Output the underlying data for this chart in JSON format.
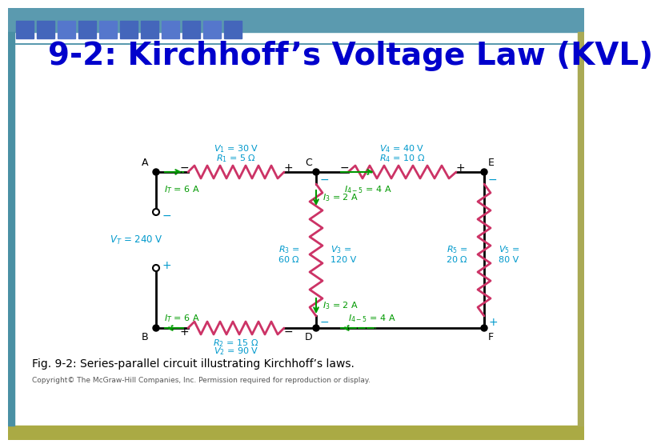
{
  "title": "9-2: Kirchhoff’s Voltage Law (KVL)",
  "title_color": "#0000CC",
  "title_fontsize": 28,
  "fig_caption": "Fig. 9-2: Series-parallel circuit illustrating Kirchhoff’s laws.",
  "copyright": "Copyright© The McGraw-Hill Companies, Inc. Permission required for reproduction or display.",
  "bg_color": "#FFFFFF",
  "border_color_top": "#5B8FA8",
  "border_color_bottom": "#9B9B00",
  "border_left_color": "#4A7FA0",
  "header_tile_color": "#4A6FAF",
  "circuit_line_color": "#000000",
  "resistor_color_horiz": "#CC3366",
  "resistor_color_vert": "#CC3366",
  "current_arrow_color": "#009900",
  "label_color": "#0099CC",
  "node_color": "#000000",
  "source_color": "#0099CC"
}
